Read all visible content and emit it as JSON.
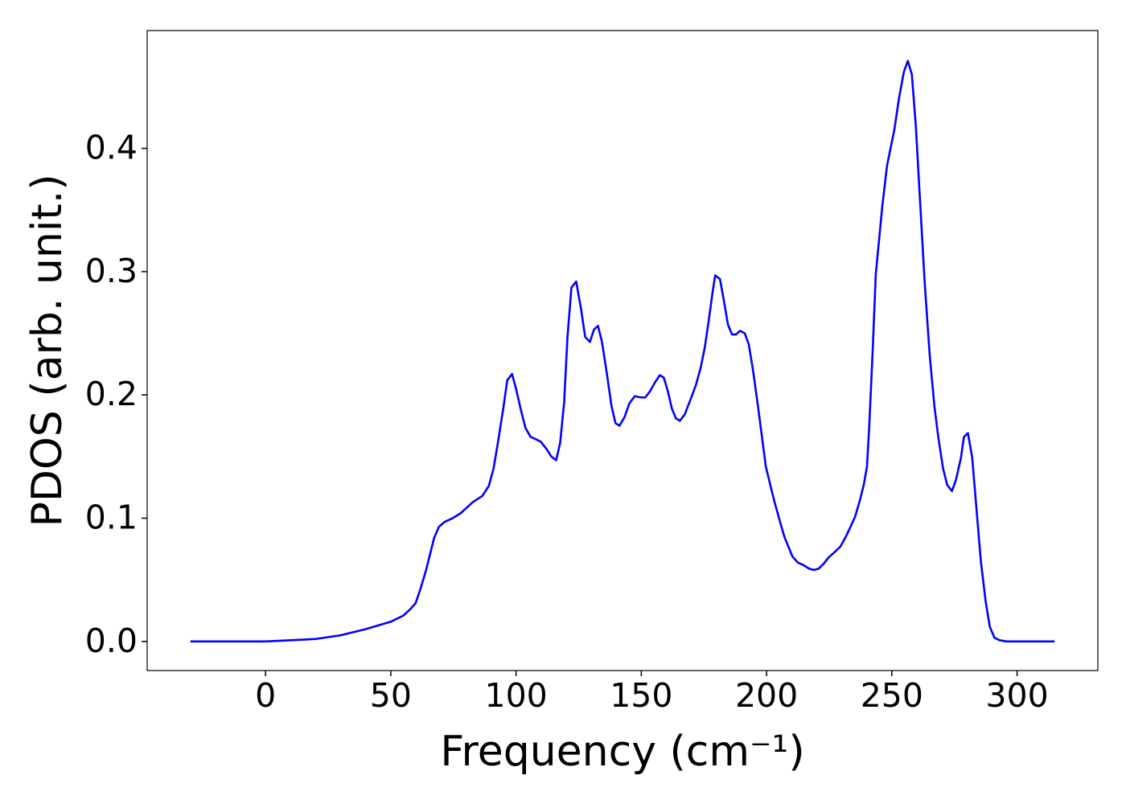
{
  "chart_data": {
    "type": "line",
    "xlabel": "Frequency (cm⁻¹)",
    "ylabel": "PDOS (arb. unit.)",
    "xlim": [
      -47.25,
      332.25
    ],
    "ylim": [
      -0.0236,
      0.4956
    ],
    "xticks": [
      0,
      50,
      100,
      150,
      200,
      250,
      300
    ],
    "yticks": [
      {
        "value": 0,
        "label": "0.0"
      },
      0.1,
      0.2,
      0.3,
      0.4
    ],
    "grid": false,
    "series": [
      {
        "color": "#0000ff",
        "x": [
          -30,
          0,
          10,
          20,
          30,
          40,
          50,
          55,
          57.7,
          59.9,
          61.9,
          64.1,
          67.3,
          69.2,
          71.5,
          74.7,
          77.9,
          82.7,
          86.5,
          89.1,
          91.0,
          92.9,
          94.9,
          96.5,
          98.4,
          100,
          101.9,
          103.8,
          105.8,
          108.0,
          109.9,
          112.2,
          114.1,
          116.0,
          117.6,
          119.2,
          120.5,
          122.1,
          124.0,
          126.0,
          127.6,
          129.5,
          131.1,
          132.7,
          134.3,
          136.2,
          138.1,
          139.7,
          141.3,
          143.3,
          145.2,
          147.4,
          149.7,
          151.6,
          153.5,
          155.4,
          157.4,
          159.0,
          160.6,
          162.2,
          163.8,
          165.4,
          167.3,
          169.6,
          171.8,
          173.7,
          175.3,
          176.9,
          178.5,
          179.5,
          181.4,
          183.0,
          184.6,
          186.2,
          187.8,
          189.4,
          191.3,
          192.9,
          194.6,
          196.5,
          198.1,
          199.7,
          201.6,
          203.2,
          205.4,
          207.1,
          208.7,
          210.3,
          212.5,
          214.7,
          217.0,
          218.9,
          220.8,
          222.8,
          224.7,
          226.9,
          229.5,
          231.4,
          233.3,
          235.3,
          237.2,
          238.8,
          240.1,
          241.0,
          242.3,
          243.6,
          246.2,
          248.1,
          251.0,
          252.9,
          254.8,
          256.4,
          258.0,
          259.6,
          261.2,
          263.1,
          265.1,
          267.0,
          268.6,
          270.5,
          272.1,
          274.0,
          275.6,
          277.6,
          278.8,
          280.4,
          282.1,
          283.7,
          285.6,
          287.5,
          289.1,
          291.0,
          293.0,
          295.8,
          315
        ],
        "values": [
          0,
          0,
          0.001,
          0.002,
          0.005,
          0.01,
          0.016,
          0.021,
          0.026,
          0.031,
          0.043,
          0.058,
          0.084,
          0.093,
          0.097,
          0.1,
          0.104,
          0.113,
          0.118,
          0.126,
          0.14,
          0.163,
          0.189,
          0.212,
          0.217,
          0.205,
          0.188,
          0.173,
          0.166,
          0.164,
          0.162,
          0.156,
          0.15,
          0.147,
          0.161,
          0.194,
          0.246,
          0.287,
          0.292,
          0.269,
          0.247,
          0.243,
          0.253,
          0.256,
          0.243,
          0.218,
          0.191,
          0.177,
          0.175,
          0.182,
          0.193,
          0.199,
          0.198,
          0.198,
          0.203,
          0.21,
          0.216,
          0.214,
          0.203,
          0.189,
          0.181,
          0.179,
          0.184,
          0.196,
          0.208,
          0.222,
          0.238,
          0.26,
          0.284,
          0.297,
          0.294,
          0.276,
          0.257,
          0.249,
          0.249,
          0.252,
          0.25,
          0.241,
          0.22,
          0.192,
          0.167,
          0.142,
          0.126,
          0.113,
          0.097,
          0.085,
          0.077,
          0.069,
          0.064,
          0.062,
          0.059,
          0.058,
          0.059,
          0.063,
          0.068,
          0.072,
          0.077,
          0.084,
          0.092,
          0.101,
          0.114,
          0.127,
          0.142,
          0.175,
          0.233,
          0.298,
          0.353,
          0.386,
          0.415,
          0.441,
          0.462,
          0.471,
          0.46,
          0.418,
          0.36,
          0.292,
          0.233,
          0.191,
          0.165,
          0.14,
          0.127,
          0.122,
          0.131,
          0.149,
          0.166,
          0.169,
          0.149,
          0.11,
          0.064,
          0.032,
          0.012,
          0.003,
          0.001,
          0,
          0
        ]
      }
    ]
  }
}
